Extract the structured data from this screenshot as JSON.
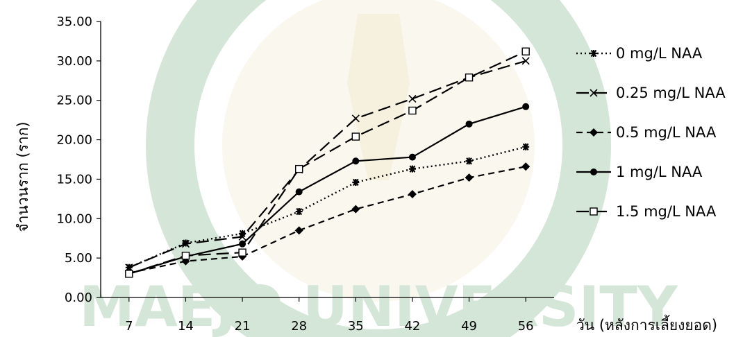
{
  "chart_data": {
    "type": "line",
    "title": "",
    "xlabel": "วัน (หลังการเลี้ยงยอด)",
    "ylabel": "จำนวนราก (ราก)",
    "categories": [
      "7",
      "14",
      "21",
      "28",
      "35",
      "42",
      "49",
      "56"
    ],
    "x": [
      7,
      14,
      21,
      28,
      35,
      42,
      49,
      56
    ],
    "y_ticks": [
      "0.00",
      "5.00",
      "10.00",
      "15.00",
      "20.00",
      "25.00",
      "30.00",
      "35.00"
    ],
    "ylim": [
      0,
      35
    ],
    "grid": false,
    "legend_position": "right",
    "series": [
      {
        "name": "0 mg/L NAA",
        "marker": "asterisk",
        "dash": "dotted",
        "values": [
          3.8,
          6.9,
          8.1,
          10.9,
          14.6,
          16.3,
          17.3,
          19.1
        ]
      },
      {
        "name": "0.25 mg/L NAA",
        "marker": "x",
        "dash": "long-dash",
        "values": [
          3.8,
          6.8,
          7.7,
          16.2,
          22.7,
          25.2,
          27.9,
          30.0
        ]
      },
      {
        "name": "0.5 mg/L NAA",
        "marker": "diamond",
        "dash": "dashed",
        "values": [
          3.1,
          4.6,
          5.2,
          8.5,
          11.2,
          13.1,
          15.2,
          16.6
        ]
      },
      {
        "name": "1 mg/L NAA",
        "marker": "circle",
        "dash": "solid",
        "values": [
          3.0,
          5.2,
          6.8,
          13.4,
          17.3,
          17.8,
          22.0,
          24.2
        ]
      },
      {
        "name": "1.5 mg/L NAA",
        "marker": "open-square",
        "dash": "long-dash",
        "values": [
          3.0,
          5.3,
          5.7,
          16.3,
          20.4,
          23.7,
          27.9,
          31.2
        ]
      }
    ]
  },
  "watermark": {
    "text": "MAEJO UNIVERSITY",
    "color": "#4f9d5b"
  }
}
